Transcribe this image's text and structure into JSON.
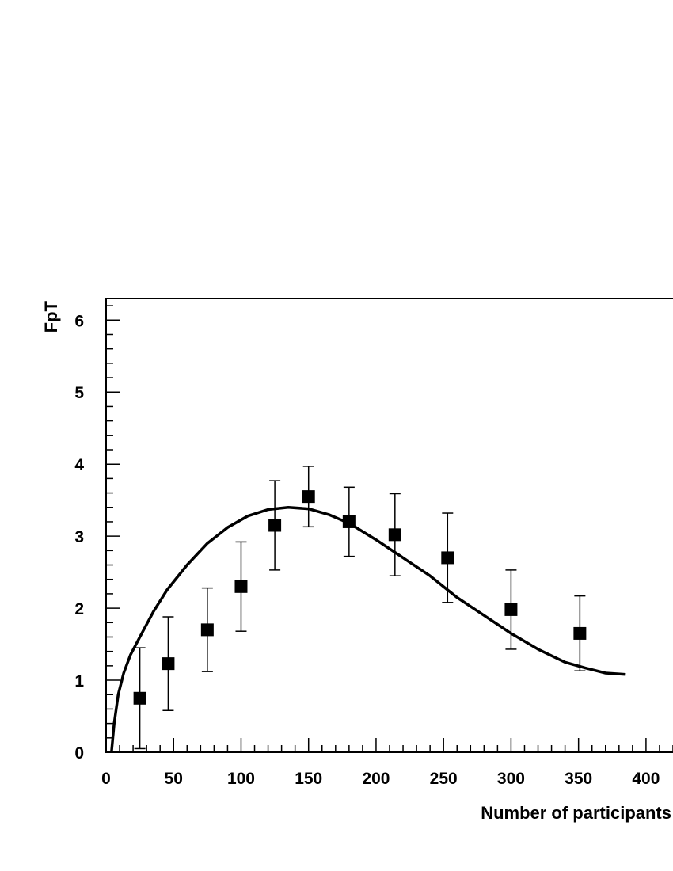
{
  "chart_data": {
    "type": "scatter",
    "title": "",
    "xlabel": "Number of participants",
    "ylabel": "FpT",
    "xlim": [
      0,
      420
    ],
    "ylim": [
      0,
      6.3
    ],
    "x_ticks": [
      0,
      50,
      100,
      150,
      200,
      250,
      300,
      350,
      400
    ],
    "y_ticks": [
      0,
      1,
      2,
      3,
      4,
      5,
      6
    ],
    "x_minor_step": 10,
    "y_minor_step": 0.2,
    "grid": false,
    "legend": "none",
    "series": [
      {
        "kind": "points-with-errors",
        "marker": "filled-square",
        "color": "#000000",
        "points": [
          {
            "x": 25,
            "y": 0.75,
            "err": 0.7
          },
          {
            "x": 46,
            "y": 1.23,
            "err": 0.65
          },
          {
            "x": 75,
            "y": 1.7,
            "err": 0.58
          },
          {
            "x": 100,
            "y": 2.3,
            "err": 0.62
          },
          {
            "x": 125,
            "y": 3.15,
            "err": 0.62
          },
          {
            "x": 150,
            "y": 3.55,
            "err": 0.42
          },
          {
            "x": 180,
            "y": 3.2,
            "err": 0.48
          },
          {
            "x": 214,
            "y": 3.02,
            "err": 0.57
          },
          {
            "x": 253,
            "y": 2.7,
            "err": 0.62
          },
          {
            "x": 300,
            "y": 1.98,
            "err": 0.55
          },
          {
            "x": 351,
            "y": 1.65,
            "err": 0.52
          }
        ]
      },
      {
        "kind": "curve",
        "color": "#000000",
        "points": [
          [
            4,
            0
          ],
          [
            6,
            0.4
          ],
          [
            9,
            0.8
          ],
          [
            13,
            1.1
          ],
          [
            18,
            1.35
          ],
          [
            25,
            1.6
          ],
          [
            35,
            1.95
          ],
          [
            45,
            2.25
          ],
          [
            60,
            2.6
          ],
          [
            75,
            2.9
          ],
          [
            90,
            3.12
          ],
          [
            105,
            3.28
          ],
          [
            120,
            3.37
          ],
          [
            135,
            3.4
          ],
          [
            150,
            3.38
          ],
          [
            165,
            3.3
          ],
          [
            180,
            3.18
          ],
          [
            200,
            2.95
          ],
          [
            220,
            2.7
          ],
          [
            240,
            2.45
          ],
          [
            260,
            2.15
          ],
          [
            280,
            1.9
          ],
          [
            300,
            1.65
          ],
          [
            320,
            1.43
          ],
          [
            340,
            1.25
          ],
          [
            355,
            1.17
          ],
          [
            370,
            1.1
          ],
          [
            385,
            1.08
          ]
        ]
      }
    ]
  }
}
